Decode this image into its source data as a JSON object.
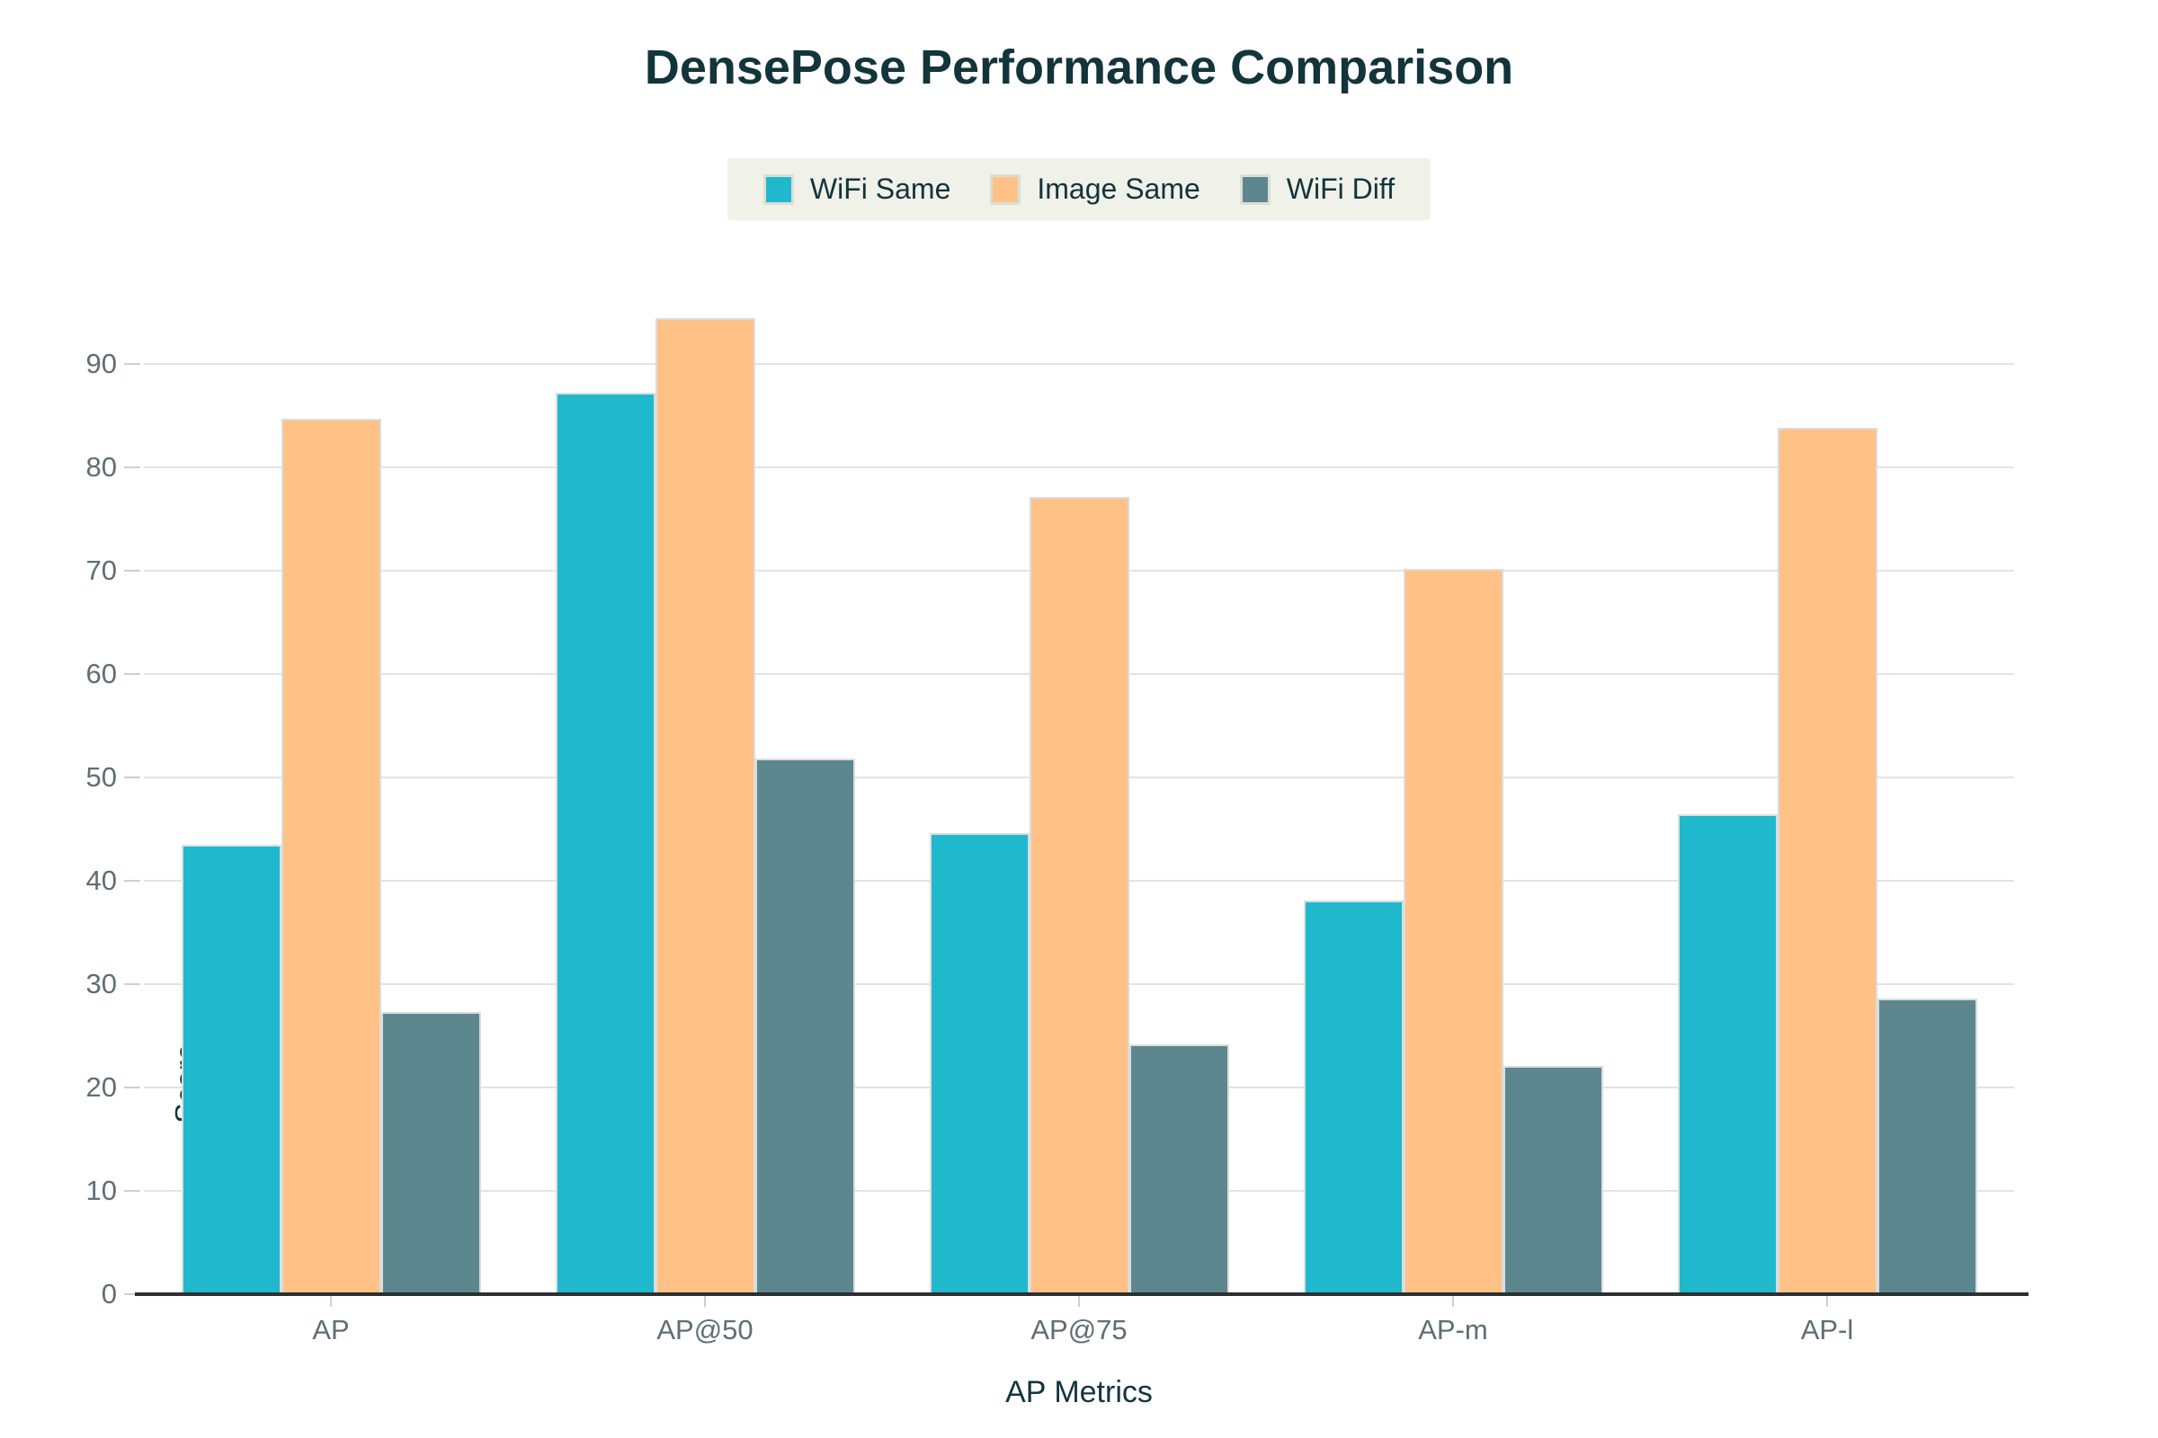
{
  "chart_data": {
    "type": "bar",
    "title": "DensePose Performance Comparison",
    "xlabel": "AP Metrics",
    "ylabel": "Score",
    "categories": [
      "AP",
      "AP@50",
      "AP@75",
      "AP-m",
      "AP-l"
    ],
    "series": [
      {
        "name": "WiFi Same",
        "color": "#1FB8CD",
        "values": [
          43.5,
          87.2,
          44.6,
          38.1,
          46.4
        ]
      },
      {
        "name": "Image Same",
        "color": "#FFC185",
        "values": [
          84.7,
          94.4,
          77.1,
          70.2,
          83.8
        ]
      },
      {
        "name": "WiFi Diff",
        "color": "#5D878F",
        "values": [
          27.3,
          51.8,
          24.2,
          22.1,
          28.6
        ]
      }
    ],
    "yticks": [
      0,
      10,
      20,
      30,
      40,
      50,
      60,
      70,
      80,
      90
    ],
    "ylim": [
      0,
      96
    ],
    "grid": true,
    "legend_position": "top-center"
  },
  "colors": {
    "title_text": "#13343B",
    "axis_title_text": "#13343B",
    "tick_label_text": "#5F6E74",
    "gridline": "#E3E3E3",
    "axis_line": "#2E2F30",
    "legend_background": "#F0F1E8",
    "bar_border": "#DCDCDC",
    "background": "#FFFFFF"
  }
}
